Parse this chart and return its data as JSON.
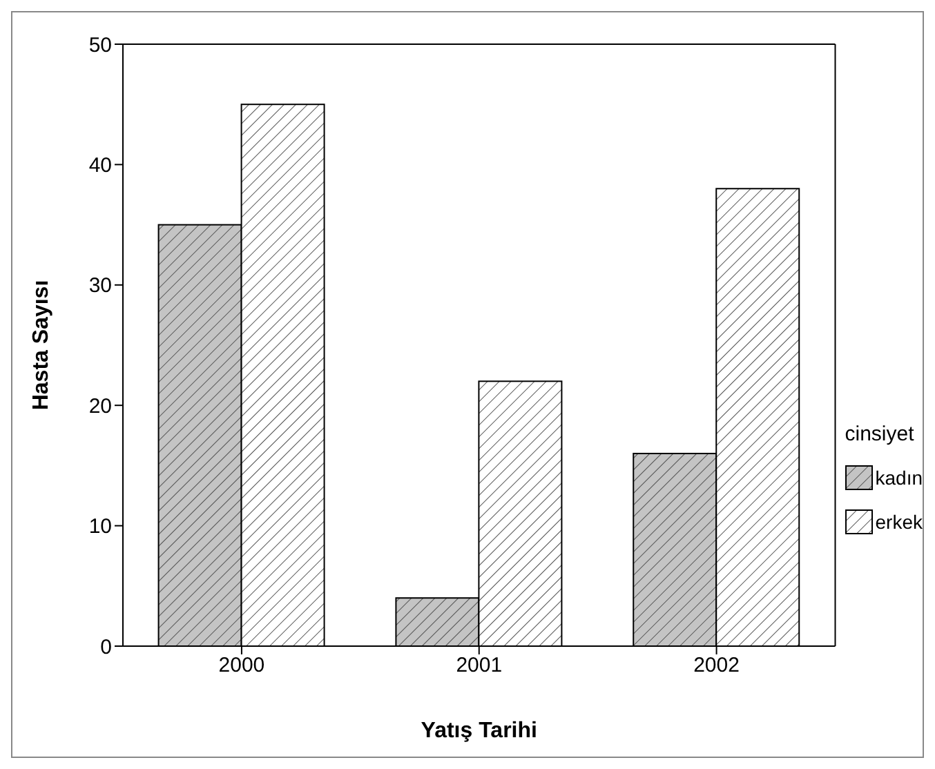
{
  "chart_data": {
    "type": "bar",
    "xlabel": "Yatış Tarihi",
    "ylabel": "Hasta Sayısı",
    "legend_title": "cinsiyet",
    "categories": [
      "2000",
      "2001",
      "2002"
    ],
    "series": [
      {
        "name": "kadın",
        "color": "#c4c4c4",
        "values": [
          35,
          4,
          16
        ]
      },
      {
        "name": "erkek",
        "color": "#ffffff",
        "values": [
          45,
          22,
          38
        ]
      }
    ],
    "ylim": [
      0,
      50
    ],
    "yticks": [
      0,
      10,
      20,
      30,
      40,
      50
    ],
    "grid": false,
    "legend": "right"
  }
}
